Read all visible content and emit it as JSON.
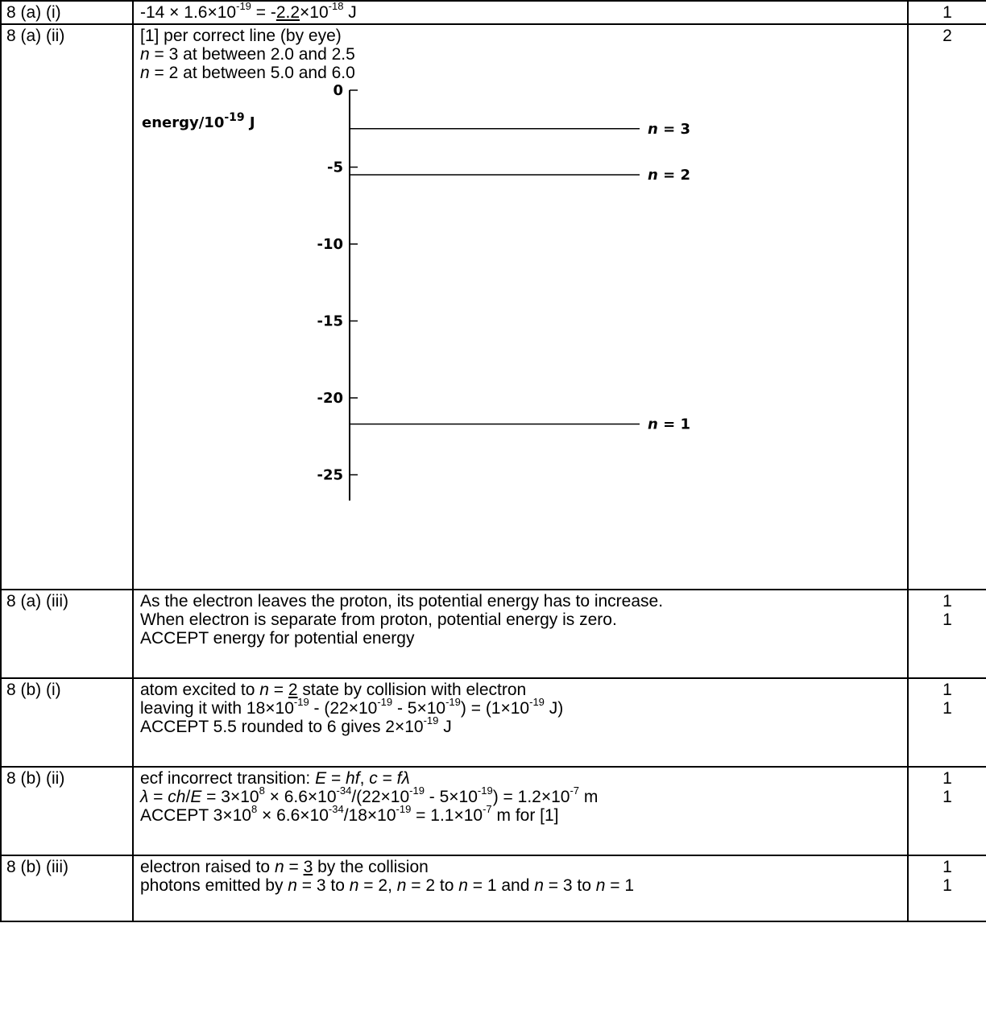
{
  "rows": [
    {
      "ref": "8 (a) (i)",
      "lines": [
        {
          "html": "-14 &times; 1.6&times;10<sup>-19</sup> = -<u>2.2</u>&times;10<sup>-18</sup> J"
        }
      ],
      "marks": [
        "1"
      ]
    },
    {
      "ref": "8 (a) (ii)",
      "lines": [
        {
          "html": "[1] per correct line (by eye)"
        },
        {
          "html": "<i>n</i> = 3 at between 2.0 and 2.5"
        },
        {
          "html": "<i>n</i> = 2 at between 5.0 and 6.0"
        }
      ],
      "marks": [
        "2"
      ],
      "diagram": true
    },
    {
      "ref": "8 (a) (iii)",
      "lines": [
        {
          "html": "As the electron leaves the proton, its potential energy has to increase."
        },
        {
          "html": "When electron is separate from proton, potential energy is zero."
        },
        {
          "html": "ACCEPT energy for potential energy"
        }
      ],
      "marks": [
        "1",
        "1"
      ]
    },
    {
      "ref": "8 (b) (i)",
      "lines": [
        {
          "html": "atom excited to <i>n</i> = <u>2</u> state by collision with electron"
        },
        {
          "html": "leaving it with 18&times;10<sup>-19</sup> - (22&times;10<sup>-19</sup> - 5&times;10<sup>-19</sup>) = (1&times;10<sup>-19</sup> J)"
        },
        {
          "html": "ACCEPT 5.5 rounded to 6 gives 2&times;10<sup>-19</sup> J"
        }
      ],
      "marks": [
        "1",
        "1"
      ]
    },
    {
      "ref": "8 (b) (ii)",
      "lines": [
        {
          "html": "ecf incorrect transition: <i>E</i> = <i>hf</i>, <i>c</i> = <i>f&lambda;</i>"
        },
        {
          "html": "<i>&lambda;</i> = <i>ch</i>/<i>E</i> = 3&times;10<sup>8</sup> &times; 6.6&times;10<sup>-34</sup>/(22&times;10<sup>-19</sup> - 5&times;10<sup>-19</sup>) = 1.2&times;10<sup>-7</sup> m"
        },
        {
          "html": "ACCEPT 3&times;10<sup>8</sup> &times; 6.6&times;10<sup>-34</sup>/18&times;10<sup>-19</sup> = 1.1&times;10<sup>-7</sup> m for [1]"
        }
      ],
      "marks": [
        "1",
        "1"
      ]
    },
    {
      "ref": "8 (b) (iii)",
      "lines": [
        {
          "html": "electron raised to <i>n</i> = <u>3</u> by the collision"
        },
        {
          "html": "photons emitted by <i>n</i> = 3 to <i>n</i> = 2, <i>n</i> = 2 to <i>n</i> = 1 and <i>n</i> = 3 to <i>n</i> = 1"
        }
      ],
      "marks": [
        "1",
        "1"
      ]
    }
  ],
  "diagram": {
    "axis_label_main": "energy/10",
    "axis_label_exp": "-19",
    "axis_label_unit": "J",
    "ticks": [
      "0",
      "-5",
      "-10",
      "-15",
      "-20",
      "-25"
    ],
    "levels": [
      {
        "label": "n = 3",
        "energy": -2.5
      },
      {
        "label": "n = 2",
        "energy": -5.5
      },
      {
        "label": "n = 1",
        "energy": -21.7
      }
    ]
  }
}
